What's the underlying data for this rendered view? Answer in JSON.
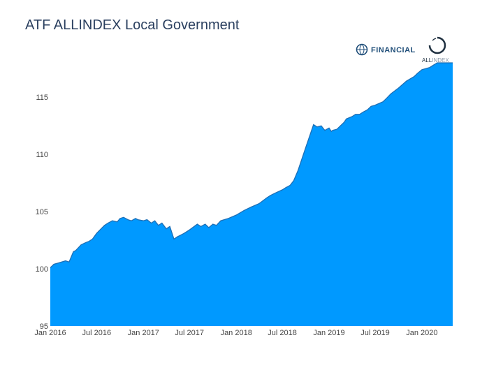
{
  "chart_data": {
    "type": "area",
    "title": "ATF ALLINDEX Local Government",
    "xlabel": "",
    "ylabel": "",
    "ylim": [
      95,
      118
    ],
    "xlim": [
      "2016-01-01",
      "2020-05-01"
    ],
    "x_ticks": [
      "2016-01-01",
      "2016-07-01",
      "2017-01-01",
      "2017-07-01",
      "2018-01-01",
      "2018-07-01",
      "2019-01-01",
      "2019-07-01",
      "2020-01-01"
    ],
    "x_tick_labels": [
      "Jan 2016",
      "Jul 2016",
      "Jan 2017",
      "Jul 2017",
      "Jan 2018",
      "Jul 2018",
      "Jan 2019",
      "Jul 2019",
      "Jan 2020"
    ],
    "y_ticks": [
      95,
      100,
      105,
      110,
      115
    ],
    "grid": false,
    "legend": "none",
    "fill_color": "#0099ff",
    "line_color": "#1f6fb5",
    "series": [
      {
        "x": [
          "2016-01-01",
          "2016-01-15",
          "2016-02-01",
          "2016-03-01",
          "2016-03-15",
          "2016-04-01",
          "2016-04-10",
          "2016-05-01",
          "2016-05-20",
          "2016-06-01",
          "2016-06-15",
          "2016-07-01",
          "2016-08-01",
          "2016-08-15",
          "2016-09-01",
          "2016-09-20",
          "2016-10-01",
          "2016-10-15",
          "2016-11-01",
          "2016-11-15",
          "2016-12-01",
          "2016-12-10",
          "2017-01-01",
          "2017-01-15",
          "2017-02-01",
          "2017-02-15",
          "2017-03-01",
          "2017-03-15",
          "2017-04-01",
          "2017-04-15",
          "2017-05-01",
          "2017-05-15",
          "2017-06-01",
          "2017-06-10",
          "2017-07-01",
          "2017-08-01",
          "2017-08-15",
          "2017-09-01",
          "2017-09-15",
          "2017-10-01",
          "2017-10-15",
          "2017-11-01",
          "2017-11-15",
          "2017-12-01",
          "2018-01-01",
          "2018-02-01",
          "2018-03-01",
          "2018-04-01",
          "2018-05-01",
          "2018-05-15",
          "2018-06-01",
          "2018-07-01",
          "2018-07-15",
          "2018-08-01",
          "2018-08-15",
          "2018-09-01",
          "2018-10-01",
          "2018-11-01",
          "2018-11-15",
          "2018-12-01",
          "2018-12-15",
          "2019-01-01",
          "2019-01-10",
          "2019-01-15",
          "2019-02-01",
          "2019-02-10",
          "2019-03-01",
          "2019-03-10",
          "2019-04-01",
          "2019-04-15",
          "2019-05-01",
          "2019-05-15",
          "2019-06-01",
          "2019-06-15",
          "2019-07-01",
          "2019-08-01",
          "2019-08-15",
          "2019-09-01",
          "2019-10-01",
          "2019-11-01",
          "2019-12-01",
          "2019-12-15",
          "2020-01-01",
          "2020-02-01",
          "2020-02-15",
          "2020-03-01",
          "2020-03-15",
          "2020-04-01",
          "2020-04-15",
          "2020-05-01"
        ],
        "y": [
          100.1,
          100.4,
          100.5,
          100.7,
          100.6,
          101.5,
          101.6,
          102.1,
          102.3,
          102.4,
          102.6,
          103.1,
          103.8,
          104.0,
          104.2,
          104.1,
          104.4,
          104.5,
          104.3,
          104.2,
          104.4,
          104.3,
          104.2,
          104.3,
          104.0,
          104.2,
          103.8,
          104.0,
          103.5,
          103.7,
          102.6,
          102.8,
          103.0,
          103.1,
          103.4,
          103.9,
          103.7,
          103.9,
          103.6,
          103.9,
          103.8,
          104.2,
          104.3,
          104.4,
          104.7,
          105.1,
          105.4,
          105.7,
          106.2,
          106.4,
          106.6,
          106.9,
          107.1,
          107.3,
          107.7,
          108.6,
          110.6,
          112.6,
          112.4,
          112.5,
          112.1,
          112.3,
          112.0,
          112.1,
          112.2,
          112.4,
          112.8,
          113.1,
          113.3,
          113.5,
          113.5,
          113.7,
          113.9,
          114.2,
          114.3,
          114.6,
          114.9,
          115.3,
          115.8,
          116.4,
          116.8,
          117.1,
          117.4,
          117.6,
          117.8,
          118.0,
          118.0,
          118.0,
          118.0,
          118.0
        ]
      }
    ]
  },
  "branding": {
    "financial": "FINANCIAL",
    "allindex_bold": "ALL",
    "allindex_light": "INDEX"
  }
}
